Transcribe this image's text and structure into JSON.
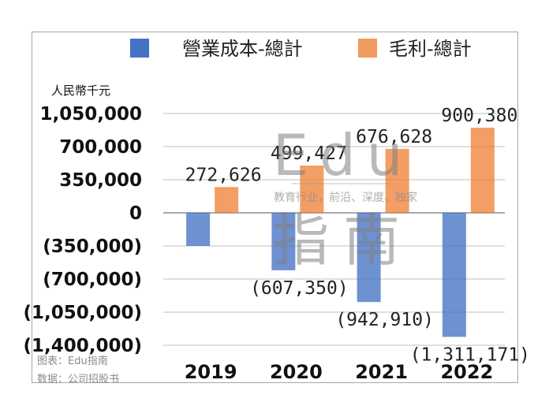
{
  "chart_data": {
    "type": "bar",
    "categories": [
      "2019",
      "2020",
      "2021",
      "2022"
    ],
    "series": [
      {
        "name": "營業成本-總計",
        "color": "#4472c4",
        "values": [
          -350000,
          -607350,
          -942910,
          -1311171
        ]
      },
      {
        "name": "毛利-總計",
        "color": "#ed7d31",
        "values": [
          272626,
          499427,
          676628,
          900380
        ]
      }
    ],
    "data_labels": {
      "cost": [
        "",
        "(607,350)",
        "(942,910)",
        "(1,311,171)"
      ],
      "profit": [
        "272,626",
        "499,427",
        "676,628",
        "900,380"
      ]
    },
    "ylabel": "人民幣千元",
    "ylim": [
      -1400000,
      1050000
    ],
    "yticks": [
      1050000,
      700000,
      350000,
      0,
      -350000,
      -700000,
      -1050000,
      -1400000
    ],
    "ytick_labels": [
      "1,050,000",
      "700,000",
      "350,000",
      "0",
      "(350,000)",
      "(700,000)",
      "(1,050,000)",
      "(1,400,000)"
    ],
    "grid": true,
    "legend_position": "top"
  },
  "watermark": {
    "logo_text": "Edu",
    "slogan": "教育行业，前沿、深度、独家",
    "sub_text": "指南"
  },
  "footer": {
    "chart_note": "图表：Edu指南",
    "data_source": "数据：公司招股书"
  }
}
